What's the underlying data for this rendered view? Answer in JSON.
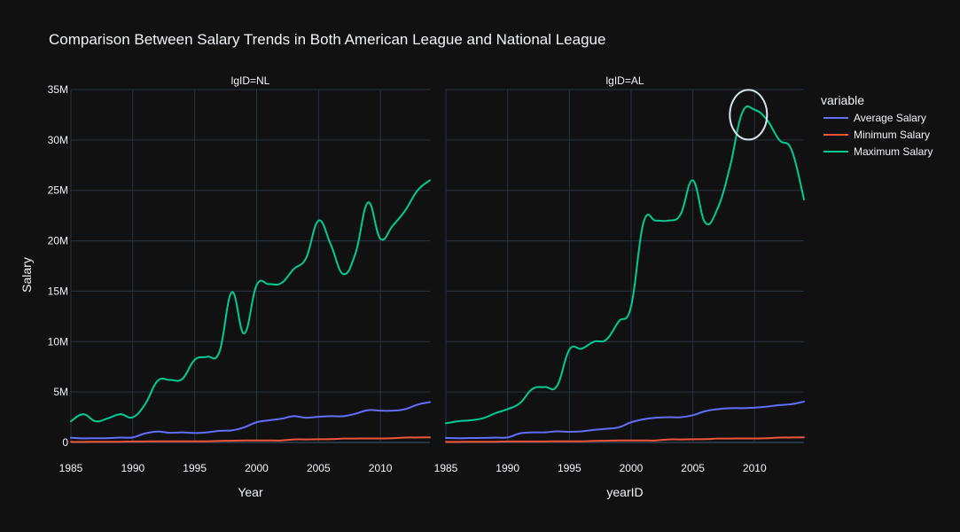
{
  "chart_data": {
    "type": "line",
    "title": "Comparison Between Salary Trends in Both American League and National League",
    "ylabel": "Salary",
    "ylim": [
      0,
      35000000
    ],
    "yticks": [
      0,
      5000000,
      10000000,
      15000000,
      20000000,
      25000000,
      30000000,
      35000000
    ],
    "ytick_labels": [
      "0",
      "5M",
      "10M",
      "15M",
      "20M",
      "25M",
      "30M",
      "35M"
    ],
    "xlim": [
      1985,
      2014
    ],
    "xticks": [
      1985,
      1990,
      1995,
      2000,
      2005,
      2010
    ],
    "xtick_labels": [
      "1985",
      "1990",
      "1995",
      "2000",
      "2005",
      "2010"
    ],
    "grid": true,
    "legend": {
      "title": "variable",
      "placement": "right",
      "entries": [
        "Average Salary",
        "Minimum Salary",
        "Maximum Salary"
      ]
    },
    "colors": {
      "Average Salary": "#636efa",
      "Minimum Salary": "#ef553b",
      "Maximum Salary": "#00cc96",
      "background": "#111111",
      "grid": "#283442",
      "text": "#f2f5fa",
      "annotation": "#d6e4ec"
    },
    "x": [
      1985,
      1986,
      1987,
      1988,
      1989,
      1990,
      1991,
      1992,
      1993,
      1994,
      1995,
      1996,
      1997,
      1998,
      1999,
      2000,
      2001,
      2002,
      2003,
      2004,
      2005,
      2006,
      2007,
      2008,
      2009,
      2010,
      2011,
      2012,
      2013,
      2014
    ],
    "panels": [
      {
        "subtitle": "lgID=NL",
        "xlabel": "Year",
        "series": [
          {
            "name": "Average Salary",
            "values": [
              470000,
              410000,
              420000,
              430000,
              480000,
              500000,
              900000,
              1080000,
              960000,
              1000000,
              930000,
              1000000,
              1150000,
              1200000,
              1500000,
              2000000,
              2200000,
              2350000,
              2600000,
              2450000,
              2550000,
              2600000,
              2600000,
              2850000,
              3200000,
              3150000,
              3150000,
              3300000,
              3750000,
              4000000
            ]
          },
          {
            "name": "Minimum Salary",
            "values": [
              60000,
              60000,
              62500,
              62500,
              68000,
              100000,
              100000,
              109000,
              109000,
              109000,
              109000,
              109000,
              150000,
              170000,
              200000,
              200000,
              200000,
              200000,
              300000,
              300000,
              316000,
              327000,
              380000,
              390000,
              400000,
              400000,
              414000,
              480000,
              490000,
              500000
            ]
          },
          {
            "name": "Maximum Salary",
            "values": [
              2100000,
              2800000,
              2100000,
              2400000,
              2800000,
              2500000,
              3800000,
              6100000,
              6200000,
              6300000,
              8200000,
              8500000,
              9000000,
              14900000,
              10800000,
              15600000,
              15700000,
              15800000,
              17200000,
              18300000,
              22000000,
              19600000,
              16700000,
              18800000,
              23800000,
              20200000,
              21500000,
              23000000,
              25000000,
              26000000
            ]
          }
        ]
      },
      {
        "subtitle": "lgID=AL",
        "xlabel": "yearID",
        "series": [
          {
            "name": "Average Salary",
            "values": [
              450000,
              420000,
              440000,
              450000,
              480000,
              500000,
              900000,
              1000000,
              1000000,
              1100000,
              1050000,
              1100000,
              1250000,
              1350000,
              1500000,
              2000000,
              2300000,
              2450000,
              2500000,
              2500000,
              2700000,
              3100000,
              3300000,
              3400000,
              3400000,
              3450000,
              3550000,
              3700000,
              3800000,
              4050000
            ]
          },
          {
            "name": "Minimum Salary",
            "values": [
              60000,
              60000,
              62500,
              62500,
              68000,
              100000,
              100000,
              100000,
              100000,
              109000,
              109000,
              109000,
              150000,
              170000,
              200000,
              200000,
              200000,
              200000,
              300000,
              300000,
              316000,
              327000,
              380000,
              390000,
              400000,
              400000,
              414000,
              480000,
              490000,
              500000
            ]
          },
          {
            "name": "Maximum Salary",
            "values": [
              1900000,
              2100000,
              2200000,
              2400000,
              2900000,
              3300000,
              3900000,
              5300000,
              5500000,
              5600000,
              9200000,
              9300000,
              10000000,
              10200000,
              12000000,
              13500000,
              21800000,
              22000000,
              22000000,
              22600000,
              26000000,
              21800000,
              23200000,
              27300000,
              32700000,
              33000000,
              32000000,
              30000000,
              29000000,
              24100000
            ]
          }
        ]
      }
    ],
    "annotation": {
      "panel": 1,
      "shape": "circle",
      "x": 2009.5,
      "y": 32500000
    }
  }
}
